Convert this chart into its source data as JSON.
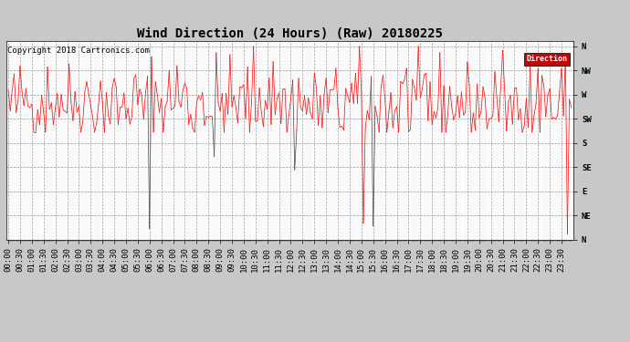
{
  "title": "Wind Direction (24 Hours) (Raw) 20180225",
  "copyright": "Copyright 2018 Cartronics.com",
  "legend_label": "Direction",
  "legend_bg": "#CC0000",
  "legend_text_color": "#FFFFFF",
  "line_color": "#FF0000",
  "dark_spike_color": "#404040",
  "background_color": "#C8C8C8",
  "plot_bg_color": "#FFFFFF",
  "grid_color": "#999999",
  "ytick_labels": [
    "N",
    "NW",
    "W",
    "SW",
    "S",
    "SE",
    "E",
    "NE",
    "N"
  ],
  "ytick_values": [
    360,
    315,
    270,
    225,
    180,
    135,
    90,
    45,
    0
  ],
  "ylim": [
    0,
    370
  ],
  "title_fontsize": 10,
  "tick_fontsize": 6.5,
  "copyright_fontsize": 6.5,
  "num_points": 288,
  "seed": 42,
  "mean_direction": 255,
  "std_direction": 40
}
